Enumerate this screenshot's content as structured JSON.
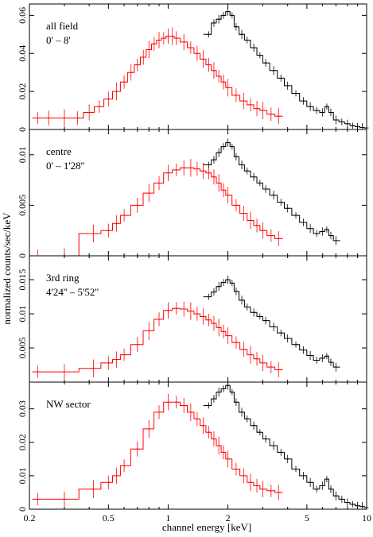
{
  "chart_data": {
    "type": "line",
    "xlabel": "channel energy [keV]",
    "ylabel": "normalized counts/sec/keV",
    "x_scale": "log",
    "xlim": [
      0.2,
      10
    ],
    "x_ticks": [
      0.2,
      0.5,
      1,
      2,
      5,
      10
    ],
    "x_tick_labels": [
      "0.2",
      "0.5",
      "1",
      "2",
      "5",
      "10"
    ],
    "series_colors": {
      "red": "#ff0000",
      "black": "#000000"
    },
    "panels": [
      {
        "label_lines": [
          "all field",
          "0' – 8'"
        ],
        "ylim": [
          0,
          0.066
        ],
        "y_ticks": [
          0,
          0.02,
          0.04,
          0.06
        ],
        "y_tick_labels": [
          "0",
          "0.02",
          "0.04",
          "0.06"
        ],
        "series": [
          {
            "color": "red",
            "x": [
              0.22,
              0.25,
              0.3,
              0.35,
              0.4,
              0.45,
              0.5,
              0.55,
              0.6,
              0.65,
              0.7,
              0.75,
              0.8,
              0.85,
              0.9,
              0.95,
              1.0,
              1.05,
              1.1,
              1.2,
              1.3,
              1.4,
              1.5,
              1.6,
              1.7,
              1.8,
              1.9,
              2.0,
              2.2,
              2.4,
              2.6,
              2.8,
              3.0,
              3.3,
              3.6
            ],
            "y": [
              0.006,
              0.006,
              0.006,
              0.006,
              0.009,
              0.012,
              0.016,
              0.02,
              0.025,
              0.03,
              0.034,
              0.038,
              0.042,
              0.045,
              0.047,
              0.048,
              0.049,
              0.049,
              0.048,
              0.046,
              0.043,
              0.04,
              0.037,
              0.034,
              0.031,
              0.028,
              0.025,
              0.022,
              0.018,
              0.015,
              0.013,
              0.011,
              0.01,
              0.008,
              0.007
            ]
          },
          {
            "color": "black",
            "x": [
              1.6,
              1.7,
              1.8,
              1.9,
              2.0,
              2.1,
              2.2,
              2.35,
              2.5,
              2.7,
              2.9,
              3.1,
              3.4,
              3.7,
              4.0,
              4.4,
              4.8,
              5.2,
              5.6,
              6.0,
              6.3,
              6.6,
              7.0,
              7.5,
              8.0,
              8.5,
              9.0,
              9.5,
              10.0
            ],
            "y": [
              0.05,
              0.056,
              0.058,
              0.06,
              0.062,
              0.06,
              0.054,
              0.05,
              0.047,
              0.043,
              0.039,
              0.035,
              0.031,
              0.027,
              0.023,
              0.019,
              0.015,
              0.012,
              0.01,
              0.009,
              0.012,
              0.009,
              0.005,
              0.004,
              0.003,
              0.002,
              0.0015,
              0.001,
              0.0008
            ]
          }
        ]
      },
      {
        "label_lines": [
          "centre",
          "0' – 1'28''"
        ],
        "ylim": [
          0,
          0.0125
        ],
        "y_ticks": [
          0,
          0.005,
          0.01
        ],
        "y_tick_labels": [
          "0",
          "0.005",
          "0.01"
        ],
        "series": [
          {
            "color": "red",
            "x": [
              0.22,
              0.3,
              0.42,
              0.5,
              0.55,
              0.6,
              0.7,
              0.8,
              0.9,
              1.0,
              1.1,
              1.2,
              1.3,
              1.4,
              1.5,
              1.6,
              1.7,
              1.8,
              1.9,
              2.0,
              2.2,
              2.4,
              2.6,
              2.8,
              3.0,
              3.3,
              3.6
            ],
            "y": [
              0.0,
              0.0,
              0.0022,
              0.0025,
              0.0032,
              0.004,
              0.005,
              0.0062,
              0.0072,
              0.0082,
              0.0085,
              0.0087,
              0.0087,
              0.0086,
              0.0084,
              0.0082,
              0.0078,
              0.0072,
              0.0065,
              0.006,
              0.005,
              0.0042,
              0.0035,
              0.003,
              0.0025,
              0.002,
              0.0017
            ]
          },
          {
            "color": "black",
            "x": [
              1.6,
              1.7,
              1.8,
              1.9,
              2.0,
              2.1,
              2.2,
              2.35,
              2.5,
              2.7,
              2.9,
              3.1,
              3.4,
              3.7,
              4.0,
              4.4,
              4.8,
              5.2,
              5.6,
              6.0,
              6.3,
              6.6,
              7.0
            ],
            "y": [
              0.009,
              0.0095,
              0.0102,
              0.0108,
              0.0112,
              0.0108,
              0.0098,
              0.009,
              0.0084,
              0.0078,
              0.0072,
              0.0066,
              0.006,
              0.0053,
              0.0047,
              0.004,
              0.0033,
              0.0027,
              0.0022,
              0.0024,
              0.0026,
              0.002,
              0.0015
            ]
          }
        ]
      },
      {
        "label_lines": [
          "3rd ring",
          "4'24'' – 5'52''"
        ],
        "ylim": [
          0,
          0.0185
        ],
        "y_ticks": [
          0.005,
          0.01,
          0.015
        ],
        "y_tick_labels": [
          "0.005",
          "0.01",
          "0.015"
        ],
        "series": [
          {
            "color": "red",
            "x": [
              0.22,
              0.3,
              0.42,
              0.5,
              0.55,
              0.6,
              0.7,
              0.8,
              0.9,
              1.0,
              1.1,
              1.2,
              1.3,
              1.4,
              1.5,
              1.6,
              1.7,
              1.8,
              1.9,
              2.0,
              2.2,
              2.4,
              2.6,
              2.8,
              3.0,
              3.3,
              3.6
            ],
            "y": [
              0.0015,
              0.0015,
              0.002,
              0.0028,
              0.0033,
              0.004,
              0.0055,
              0.0075,
              0.0092,
              0.0105,
              0.0108,
              0.0107,
              0.0104,
              0.01,
              0.0096,
              0.0091,
              0.0086,
              0.008,
              0.0074,
              0.0068,
              0.0058,
              0.0048,
              0.004,
              0.0034,
              0.0028,
              0.0022,
              0.0018
            ]
          },
          {
            "color": "black",
            "x": [
              1.6,
              1.7,
              1.8,
              1.9,
              2.0,
              2.1,
              2.2,
              2.35,
              2.5,
              2.7,
              2.9,
              3.1,
              3.4,
              3.7,
              4.0,
              4.4,
              4.8,
              5.2,
              5.6,
              6.0,
              6.3,
              6.6,
              7.0
            ],
            "y": [
              0.0125,
              0.0132,
              0.014,
              0.0146,
              0.015,
              0.0145,
              0.0133,
              0.012,
              0.011,
              0.0102,
              0.0096,
              0.009,
              0.0081,
              0.0072,
              0.0064,
              0.0055,
              0.0047,
              0.0039,
              0.0032,
              0.0035,
              0.0038,
              0.0029,
              0.0022
            ]
          }
        ]
      },
      {
        "label_lines": [
          "NW sector"
        ],
        "ylim": [
          0,
          0.038
        ],
        "y_ticks": [
          0,
          0.01,
          0.02,
          0.03
        ],
        "y_tick_labels": [
          "0",
          "0.01",
          "0.02",
          "0.03"
        ],
        "series": [
          {
            "color": "red",
            "x": [
              0.22,
              0.3,
              0.42,
              0.5,
              0.55,
              0.6,
              0.7,
              0.8,
              0.9,
              1.0,
              1.1,
              1.2,
              1.3,
              1.4,
              1.5,
              1.6,
              1.7,
              1.8,
              1.9,
              2.0,
              2.2,
              2.4,
              2.6,
              2.8,
              3.0,
              3.3,
              3.6
            ],
            "y": [
              0.003,
              0.003,
              0.006,
              0.008,
              0.01,
              0.013,
              0.018,
              0.024,
              0.029,
              0.032,
              0.032,
              0.031,
              0.029,
              0.027,
              0.025,
              0.023,
              0.021,
              0.019,
              0.017,
              0.015,
              0.012,
              0.01,
              0.008,
              0.007,
              0.006,
              0.0055,
              0.005
            ]
          },
          {
            "color": "black",
            "x": [
              1.6,
              1.7,
              1.8,
              1.9,
              2.0,
              2.1,
              2.2,
              2.35,
              2.5,
              2.7,
              2.9,
              3.1,
              3.4,
              3.7,
              4.0,
              4.4,
              4.8,
              5.2,
              5.6,
              6.0,
              6.3,
              6.6,
              7.0,
              7.5,
              8.0,
              8.5,
              9.0,
              9.5,
              10.0
            ],
            "y": [
              0.031,
              0.033,
              0.035,
              0.036,
              0.037,
              0.035,
              0.032,
              0.029,
              0.027,
              0.025,
              0.023,
              0.021,
              0.019,
              0.017,
              0.015,
              0.012,
              0.01,
              0.008,
              0.006,
              0.007,
              0.009,
              0.006,
              0.004,
              0.003,
              0.002,
              0.0015,
              0.001,
              0.0008,
              0.0005
            ]
          }
        ]
      }
    ]
  }
}
